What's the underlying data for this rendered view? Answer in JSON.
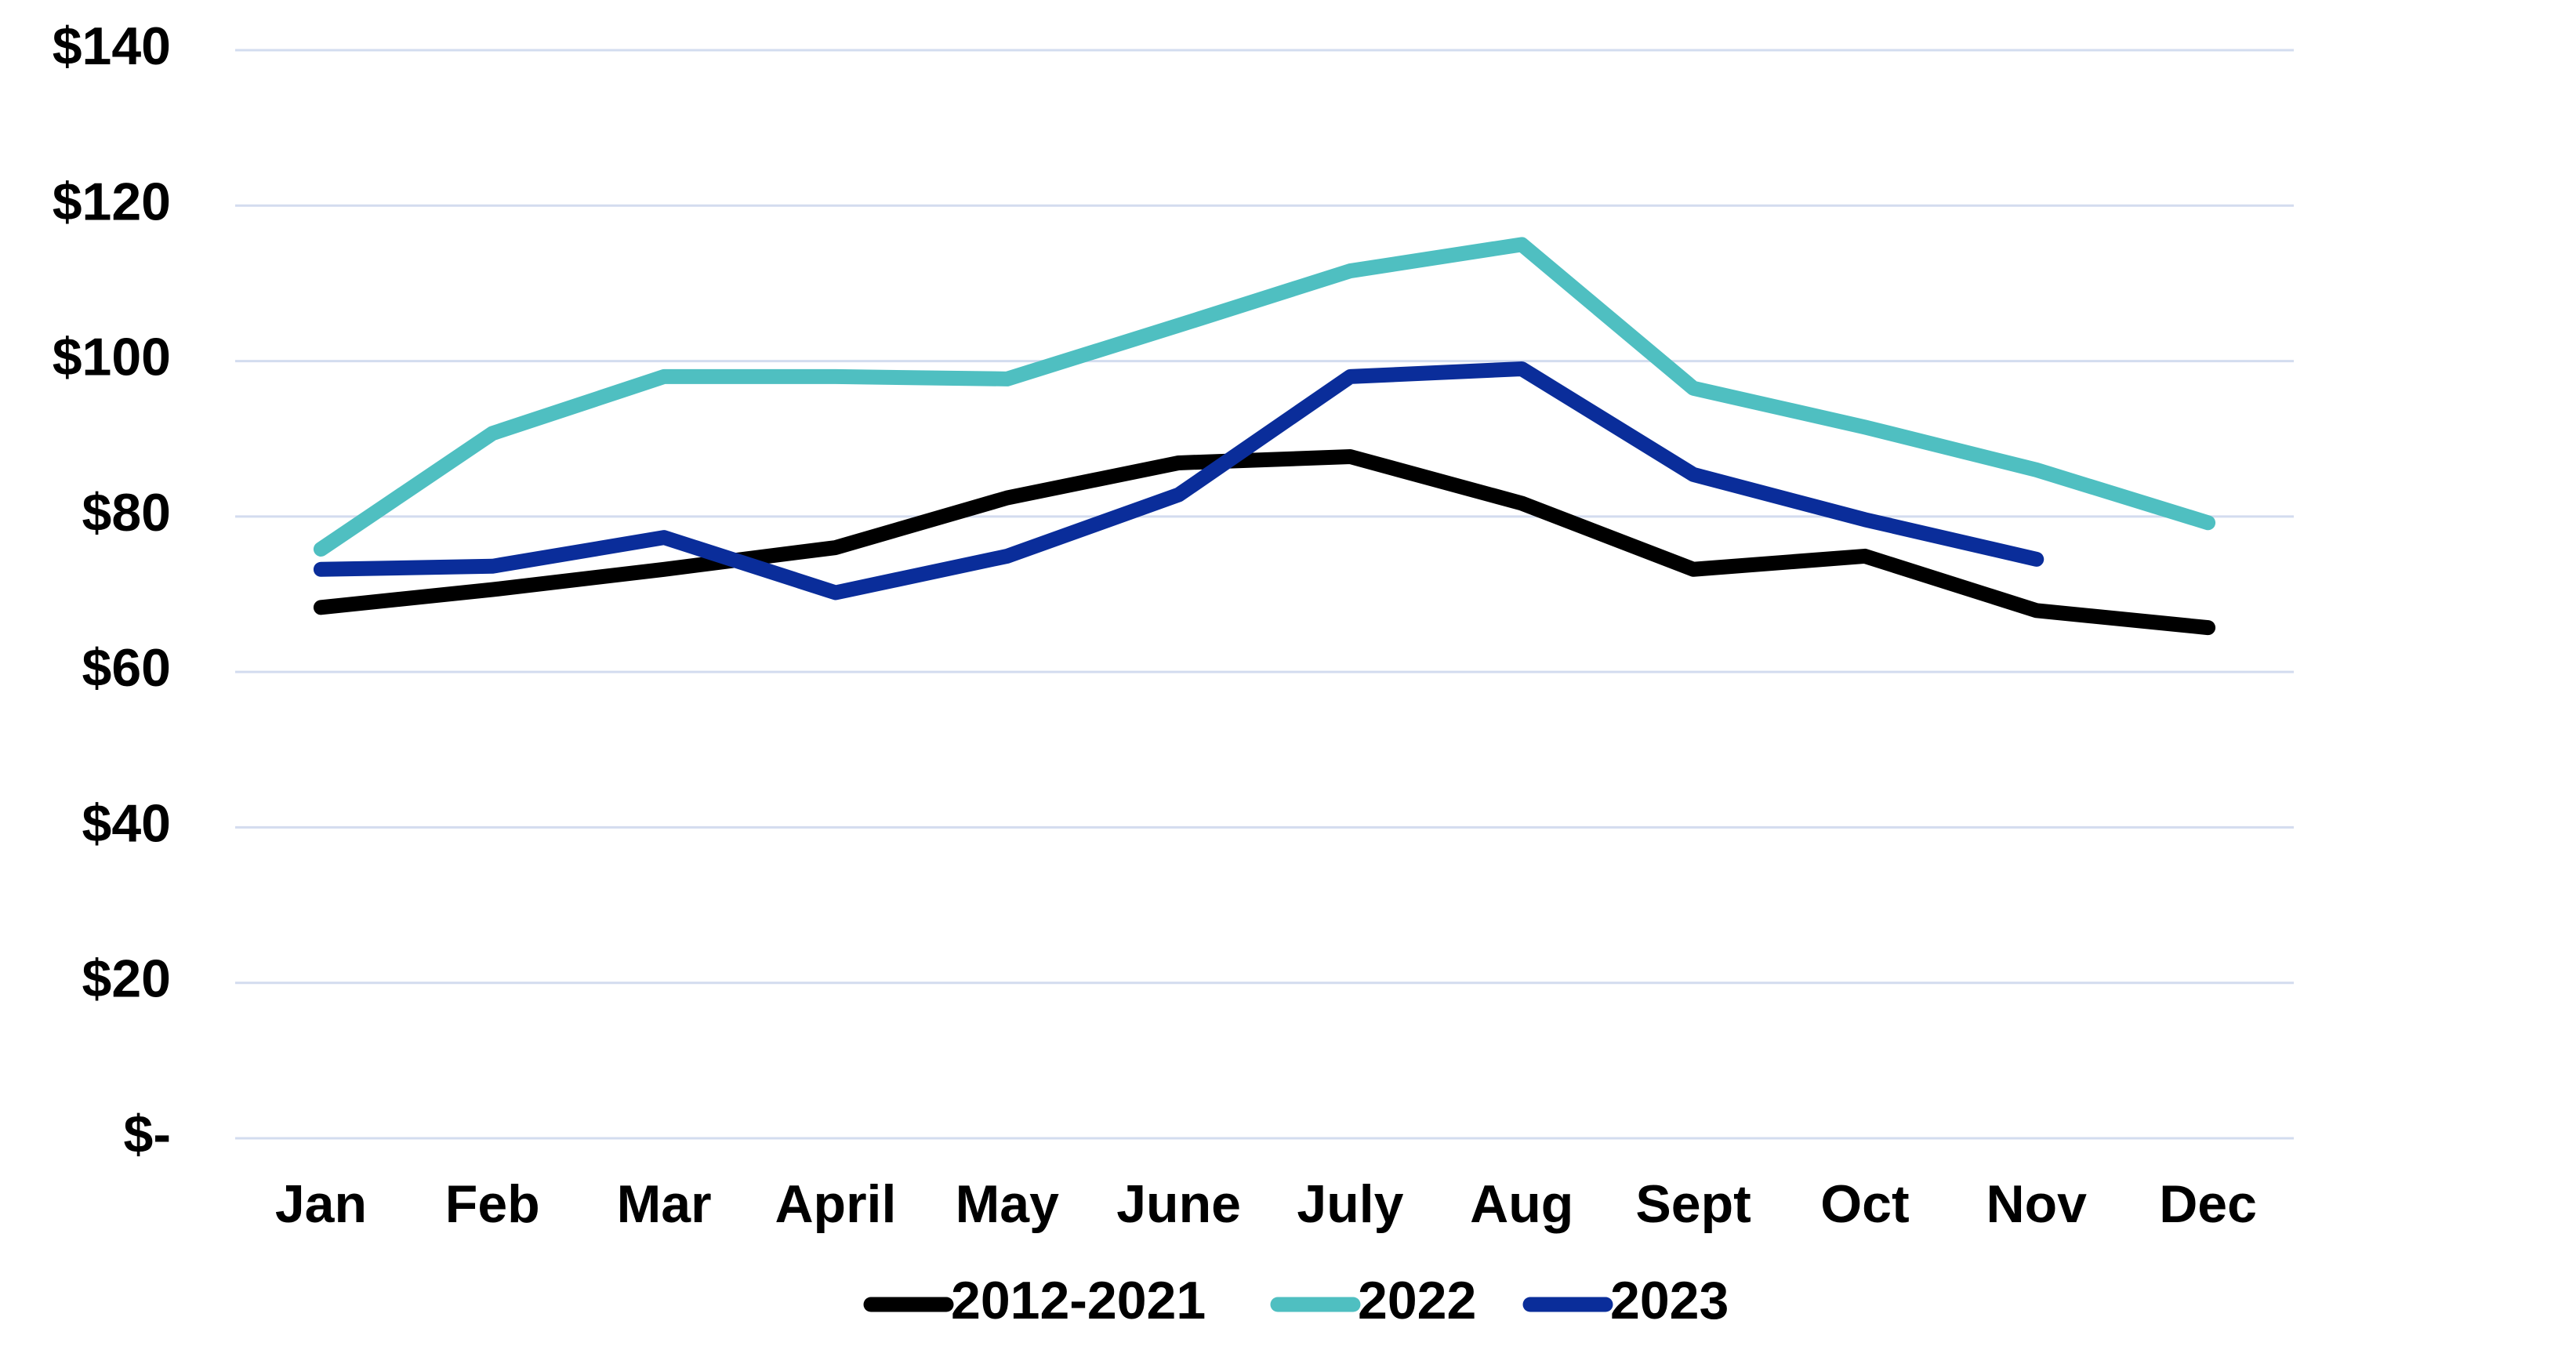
{
  "chart_data": {
    "type": "line",
    "categories": [
      "Jan",
      "Feb",
      "Mar",
      "April",
      "May",
      "June",
      "July",
      "Aug",
      "Sept",
      "Oct",
      "Nov",
      "Dec"
    ],
    "series": [
      {
        "name": "2012-2021",
        "color": "#000000",
        "values": [
          68.3,
          70.6,
          73.2,
          76,
          82.4,
          86.9,
          87.7,
          81.7,
          73.2,
          74.9,
          67.9,
          65.7
        ]
      },
      {
        "name": "2022",
        "color": "#4fbfc1",
        "values": [
          75.8,
          90.7,
          98,
          98,
          97.7,
          104.6,
          111.6,
          115,
          96.5,
          91.5,
          86,
          79.2
        ]
      },
      {
        "name": "2023",
        "color": "#0a2d9a",
        "values": [
          73.2,
          73.6,
          77.3,
          70.2,
          74.9,
          82.8,
          98,
          99,
          85.4,
          79.6,
          74.5,
          null
        ]
      }
    ],
    "ylim": [
      0,
      140
    ],
    "yticks": [
      {
        "value": 0,
        "label": "$-"
      },
      {
        "value": 20,
        "label": "$20"
      },
      {
        "value": 40,
        "label": "$40"
      },
      {
        "value": 60,
        "label": "$60"
      },
      {
        "value": 80,
        "label": "$80"
      },
      {
        "value": 100,
        "label": "$100"
      },
      {
        "value": 120,
        "label": "$120"
      },
      {
        "value": 140,
        "label": "$140"
      }
    ],
    "grid": true,
    "legend": "bottom"
  }
}
